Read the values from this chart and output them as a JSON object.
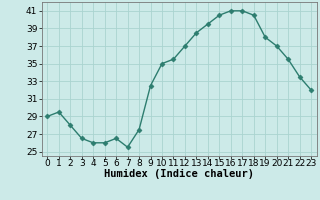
{
  "x": [
    0,
    1,
    2,
    3,
    4,
    5,
    6,
    7,
    8,
    9,
    10,
    11,
    12,
    13,
    14,
    15,
    16,
    17,
    18,
    19,
    20,
    21,
    22,
    23
  ],
  "y": [
    29,
    29.5,
    28,
    26.5,
    26,
    26,
    26.5,
    25.5,
    27.5,
    32.5,
    35,
    35.5,
    37,
    38.5,
    39.5,
    40.5,
    41,
    41,
    40.5,
    38,
    37,
    35.5,
    33.5,
    32
  ],
  "line_color": "#2d7d6f",
  "marker": "D",
  "marker_size": 2.5,
  "bg_color": "#cceae8",
  "grid_color": "#aad4d0",
  "xlabel": "Humidex (Indice chaleur)",
  "xlim": [
    -0.5,
    23.5
  ],
  "ylim": [
    24.5,
    42
  ],
  "yticks": [
    25,
    27,
    29,
    31,
    33,
    35,
    37,
    39,
    41
  ],
  "xticks": [
    0,
    1,
    2,
    3,
    4,
    5,
    6,
    7,
    8,
    9,
    10,
    11,
    12,
    13,
    14,
    15,
    16,
    17,
    18,
    19,
    20,
    21,
    22,
    23
  ],
  "xtick_labels": [
    "0",
    "1",
    "2",
    "3",
    "4",
    "5",
    "6",
    "7",
    "8",
    "9",
    "10",
    "11",
    "12",
    "13",
    "14",
    "15",
    "16",
    "17",
    "18",
    "19",
    "20",
    "21",
    "22",
    "23"
  ],
  "tick_fontsize": 6.5,
  "xlabel_fontsize": 7.5,
  "line_width": 1.0
}
